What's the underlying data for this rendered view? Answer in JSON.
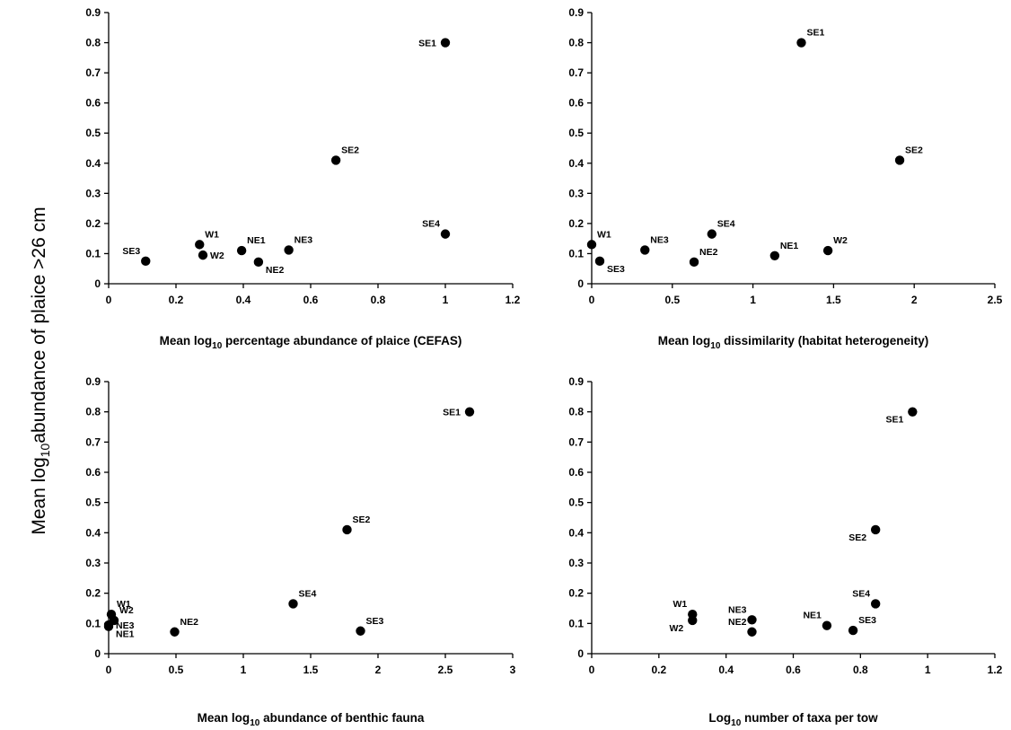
{
  "ylabel": {
    "pre": "Mean log",
    "sub": "10",
    "post": "abundance of plaice >26 cm"
  },
  "chart_data": [
    {
      "type": "scatter",
      "xlabel": {
        "pre": "Mean log",
        "sub": "10",
        "post": " percentage abundance of plaice (CEFAS)"
      },
      "xlim": [
        0,
        1.2
      ],
      "ylim": [
        0,
        0.9
      ],
      "xticks": [
        "0",
        "0.2",
        "0.4",
        "0.6",
        "0.8",
        "1",
        "1.2"
      ],
      "yticks": [
        "0",
        "0.1",
        "0.2",
        "0.3",
        "0.4",
        "0.5",
        "0.6",
        "0.7",
        "0.8",
        "0.9"
      ],
      "points": [
        {
          "label": "SE1",
          "x": 1.0,
          "y": 0.8,
          "lpos": "left"
        },
        {
          "label": "SE2",
          "x": 0.675,
          "y": 0.41,
          "lpos": "above-right"
        },
        {
          "label": "SE4",
          "x": 1.0,
          "y": 0.165,
          "lpos": "above-left"
        },
        {
          "label": "SE3",
          "x": 0.11,
          "y": 0.075,
          "lpos": "above-left"
        },
        {
          "label": "W1",
          "x": 0.27,
          "y": 0.13,
          "lpos": "above-right"
        },
        {
          "label": "W2",
          "x": 0.28,
          "y": 0.095,
          "lpos": "right"
        },
        {
          "label": "NE1",
          "x": 0.395,
          "y": 0.11,
          "lpos": "above-right"
        },
        {
          "label": "NE2",
          "x": 0.445,
          "y": 0.072,
          "lpos": "below-right"
        },
        {
          "label": "NE3",
          "x": 0.535,
          "y": 0.112,
          "lpos": "above-right"
        }
      ]
    },
    {
      "type": "scatter",
      "xlabel": {
        "pre": "Mean log",
        "sub": "10",
        "post": " dissimilarity (habitat heterogeneity)"
      },
      "xlim": [
        0,
        2.5
      ],
      "ylim": [
        0,
        0.9
      ],
      "xticks": [
        "0",
        "0.5",
        "1",
        "1.5",
        "2",
        "2.5"
      ],
      "yticks": [
        "0",
        "0.1",
        "0.2",
        "0.3",
        "0.4",
        "0.5",
        "0.6",
        "0.7",
        "0.8",
        "0.9"
      ],
      "points": [
        {
          "label": "SE1",
          "x": 1.3,
          "y": 0.8,
          "lpos": "above-right"
        },
        {
          "label": "SE2",
          "x": 1.91,
          "y": 0.41,
          "lpos": "above-right"
        },
        {
          "label": "SE4",
          "x": 0.745,
          "y": 0.165,
          "lpos": "above-right"
        },
        {
          "label": "W1",
          "x": 0.0,
          "y": 0.13,
          "lpos": "above-right"
        },
        {
          "label": "SE3",
          "x": 0.05,
          "y": 0.075,
          "lpos": "below-right"
        },
        {
          "label": "NE3",
          "x": 0.33,
          "y": 0.112,
          "lpos": "above-right"
        },
        {
          "label": "NE2",
          "x": 0.635,
          "y": 0.072,
          "lpos": "above-right"
        },
        {
          "label": "NE1",
          "x": 1.135,
          "y": 0.093,
          "lpos": "above-right"
        },
        {
          "label": "W2",
          "x": 1.465,
          "y": 0.11,
          "lpos": "above-right"
        }
      ]
    },
    {
      "type": "scatter",
      "xlabel": {
        "pre": "Mean log",
        "sub": "10",
        "post": " abundance of benthic fauna"
      },
      "xlim": [
        0,
        3
      ],
      "ylim": [
        0,
        0.9
      ],
      "xticks": [
        "0",
        "0.5",
        "1",
        "1.5",
        "2",
        "2.5",
        "3"
      ],
      "yticks": [
        "0",
        "0.1",
        "0.2",
        "0.3",
        "0.4",
        "0.5",
        "0.6",
        "0.7",
        "0.8",
        "0.9"
      ],
      "points": [
        {
          "label": "SE1",
          "x": 2.68,
          "y": 0.8,
          "lpos": "left"
        },
        {
          "label": "SE2",
          "x": 1.77,
          "y": 0.41,
          "lpos": "above-right"
        },
        {
          "label": "SE4",
          "x": 1.37,
          "y": 0.165,
          "lpos": "above-right"
        },
        {
          "label": "SE3",
          "x": 1.87,
          "y": 0.075,
          "lpos": "above-right"
        },
        {
          "label": "NE2",
          "x": 0.49,
          "y": 0.072,
          "lpos": "above-right"
        },
        {
          "label": "W1",
          "x": 0.02,
          "y": 0.13,
          "lpos": "above-right"
        },
        {
          "label": "W2",
          "x": 0.04,
          "y": 0.11,
          "lpos": "above-right"
        },
        {
          "label": "NE3",
          "x": 0.0,
          "y": 0.095,
          "lpos": "right"
        },
        {
          "label": "NE1",
          "x": 0.0,
          "y": 0.09,
          "lpos": "below-right"
        }
      ]
    },
    {
      "type": "scatter",
      "xlabel": {
        "pre": "Log",
        "sub": "10",
        "post": " number of taxa per tow"
      },
      "xlim": [
        0,
        1.2
      ],
      "ylim": [
        0,
        0.9
      ],
      "xticks": [
        "0",
        "0.2",
        "0.4",
        "0.6",
        "0.8",
        "1",
        "1.2"
      ],
      "yticks": [
        "0",
        "0.1",
        "0.2",
        "0.3",
        "0.4",
        "0.5",
        "0.6",
        "0.7",
        "0.8",
        "0.9"
      ],
      "points": [
        {
          "label": "SE1",
          "x": 0.955,
          "y": 0.8,
          "lpos": "below-left"
        },
        {
          "label": "SE2",
          "x": 0.845,
          "y": 0.41,
          "lpos": "below-left"
        },
        {
          "label": "SE4",
          "x": 0.845,
          "y": 0.165,
          "lpos": "above-left"
        },
        {
          "label": "SE3",
          "x": 0.778,
          "y": 0.077,
          "lpos": "above-right"
        },
        {
          "label": "NE1",
          "x": 0.7,
          "y": 0.093,
          "lpos": "above-left"
        },
        {
          "label": "NE3",
          "x": 0.477,
          "y": 0.112,
          "lpos": "above-left"
        },
        {
          "label": "NE2",
          "x": 0.477,
          "y": 0.072,
          "lpos": "above-left"
        },
        {
          "label": "W1",
          "x": 0.3,
          "y": 0.13,
          "lpos": "above-left"
        },
        {
          "label": "W2",
          "x": 0.3,
          "y": 0.11,
          "lpos": "below-left"
        }
      ]
    }
  ]
}
